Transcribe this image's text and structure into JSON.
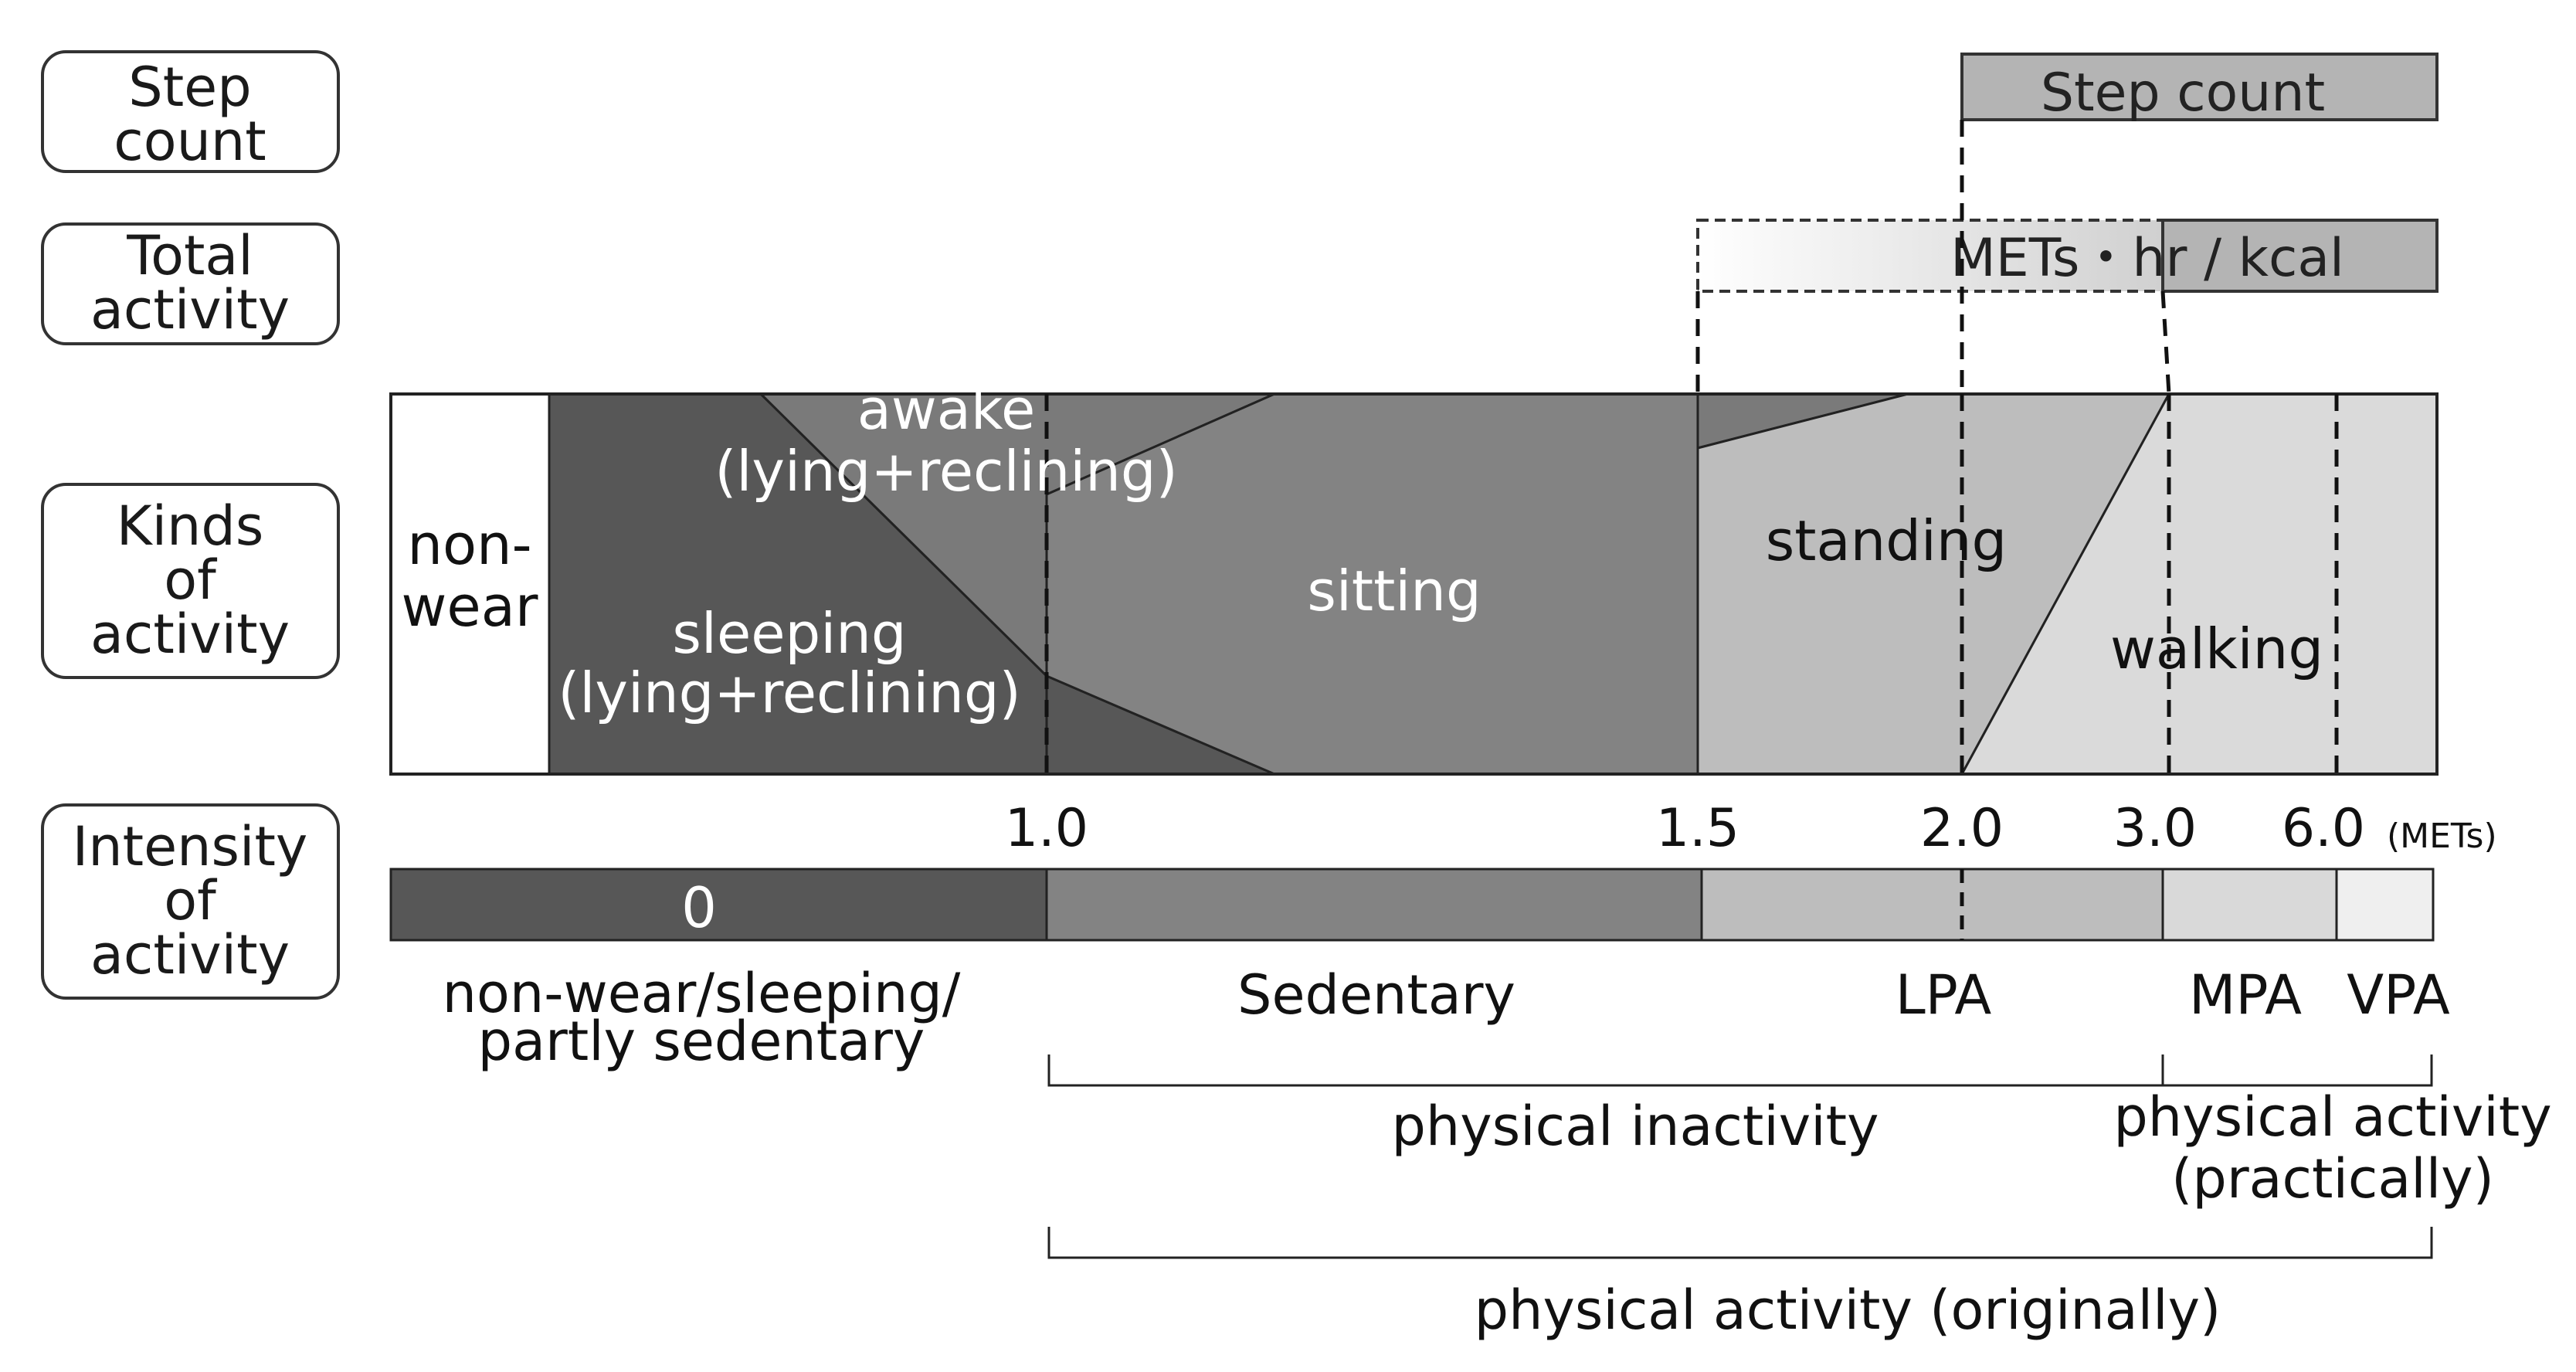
{
  "row_labels": {
    "step_count": [
      "Step",
      "count"
    ],
    "total_activity": [
      "Total",
      "activity"
    ],
    "kinds_of_activity": [
      "Kinds",
      "of",
      "activity"
    ],
    "intensity_of_activity": [
      "Intensity",
      "of",
      "activity"
    ]
  },
  "bars": {
    "step_count": "Step count",
    "total_activity": "METs・hr / kcal"
  },
  "kinds": {
    "non_wear": [
      "non-",
      "wear"
    ],
    "awake": [
      "awake",
      "(lying+reclining)"
    ],
    "sleeping": [
      "sleeping",
      "(lying+reclining)"
    ],
    "sitting": "sitting",
    "standing": "standing",
    "walking": "walking"
  },
  "intensity": {
    "ticks": [
      "1.0",
      "1.5",
      "2.0",
      "3.0",
      "6.0"
    ],
    "unit": "(METs)",
    "zero_label": "0",
    "categories": {
      "nonwear": [
        "non-wear/sleeping/",
        "partly sedentary"
      ],
      "sedentary": "Sedentary",
      "lpa": "LPA",
      "mpa": "MPA",
      "vpa": "VPA"
    }
  },
  "brackets": {
    "physical_inactivity": "physical inactivity",
    "physical_activity_practically": [
      "physical activity",
      "(practically)"
    ],
    "physical_activity_originally": "physical activity (originally)"
  },
  "colors": {
    "non_wear": "#ffffff",
    "sleeping": "#575757",
    "awake": "#7a7a7a",
    "sitting": "#838383",
    "standing": "#bdbdbd",
    "walking": "#dadada",
    "intensity_zero": "#575757",
    "intensity_sedentary": "#838383",
    "intensity_lpa": "#bdbdbd",
    "intensity_mpa": "#d9d9d9",
    "intensity_vpa": "#efefef",
    "step_bar": "#b4b4b4",
    "total_bar": "#b4b4b4"
  }
}
